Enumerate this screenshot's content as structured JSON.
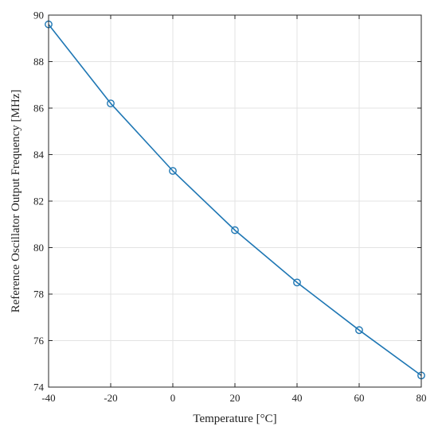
{
  "chart_data": {
    "type": "line",
    "title": "",
    "xlabel": "Temperature [°C]",
    "ylabel": "Reference Oscillator Output Frequency [MHz]",
    "xlim": [
      -40,
      80
    ],
    "ylim": [
      74,
      90
    ],
    "xticks": [
      -40,
      -20,
      0,
      20,
      40,
      60,
      80
    ],
    "yticks": [
      74,
      76,
      78,
      80,
      82,
      84,
      86,
      88,
      90
    ],
    "grid": true,
    "series": [
      {
        "color": "#1f77b4",
        "marker": "circle-open",
        "x": [
          -40,
          -20,
          0,
          20,
          40,
          60,
          80
        ],
        "y": [
          89.6,
          86.2,
          83.3,
          80.75,
          78.5,
          76.45,
          74.5
        ]
      }
    ]
  }
}
